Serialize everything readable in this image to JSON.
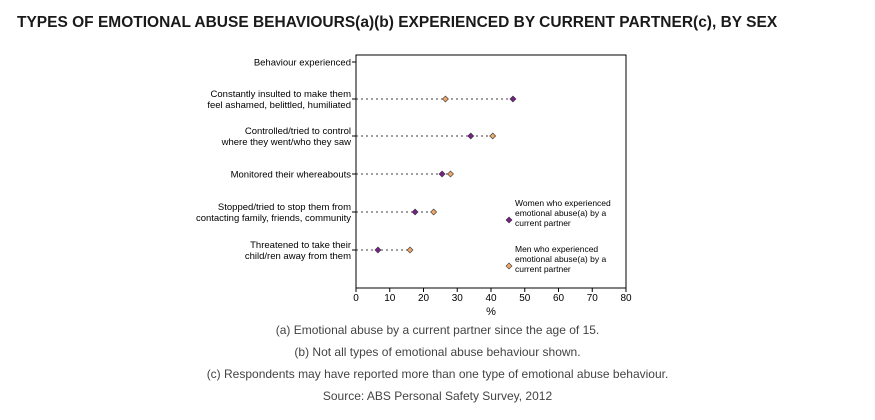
{
  "title": "TYPES OF EMOTIONAL ABUSE BEHAVIOURS(a)(b) EXPERIENCED BY CURRENT PARTNER(c), BY SEX",
  "chart_data": {
    "type": "dot",
    "category_header": "Behaviour experienced",
    "categories": [
      [
        "Constantly insulted to make them",
        "feel ashamed, belittled, humiliated"
      ],
      [
        "Controlled/tried to control",
        "where they went/who they saw"
      ],
      [
        "Monitored their whereabouts"
      ],
      [
        "Stopped/tried to stop them from",
        "contacting family, friends, community"
      ],
      [
        "Threatened to take their",
        "child/ren away from them"
      ]
    ],
    "series": [
      {
        "name": [
          "Women who experienced",
          "emotional abuse(a) by a",
          "current partner"
        ],
        "color": "#7a1f8a",
        "values": [
          46.5,
          34,
          25.5,
          17.5,
          6.5
        ]
      },
      {
        "name": [
          "Men who experienced",
          "emotional abuse(a) by a",
          "current partner"
        ],
        "color": "#f0a868",
        "values": [
          26.5,
          40.5,
          28,
          23,
          16
        ]
      }
    ],
    "xlabel": "%",
    "xlim": [
      0,
      80
    ],
    "xticks": [
      0,
      10,
      20,
      30,
      40,
      50,
      60,
      70,
      80
    ],
    "grid": false,
    "legend_position": "right"
  },
  "footnotes": [
    "(a) Emotional abuse by a current partner since the age of 15.",
    "(b) Not all types of emotional abuse behaviour shown.",
    "(c) Respondents may have reported more than one type of emotional abuse behaviour.",
    "Source: ABS Personal Safety Survey, 2012"
  ]
}
